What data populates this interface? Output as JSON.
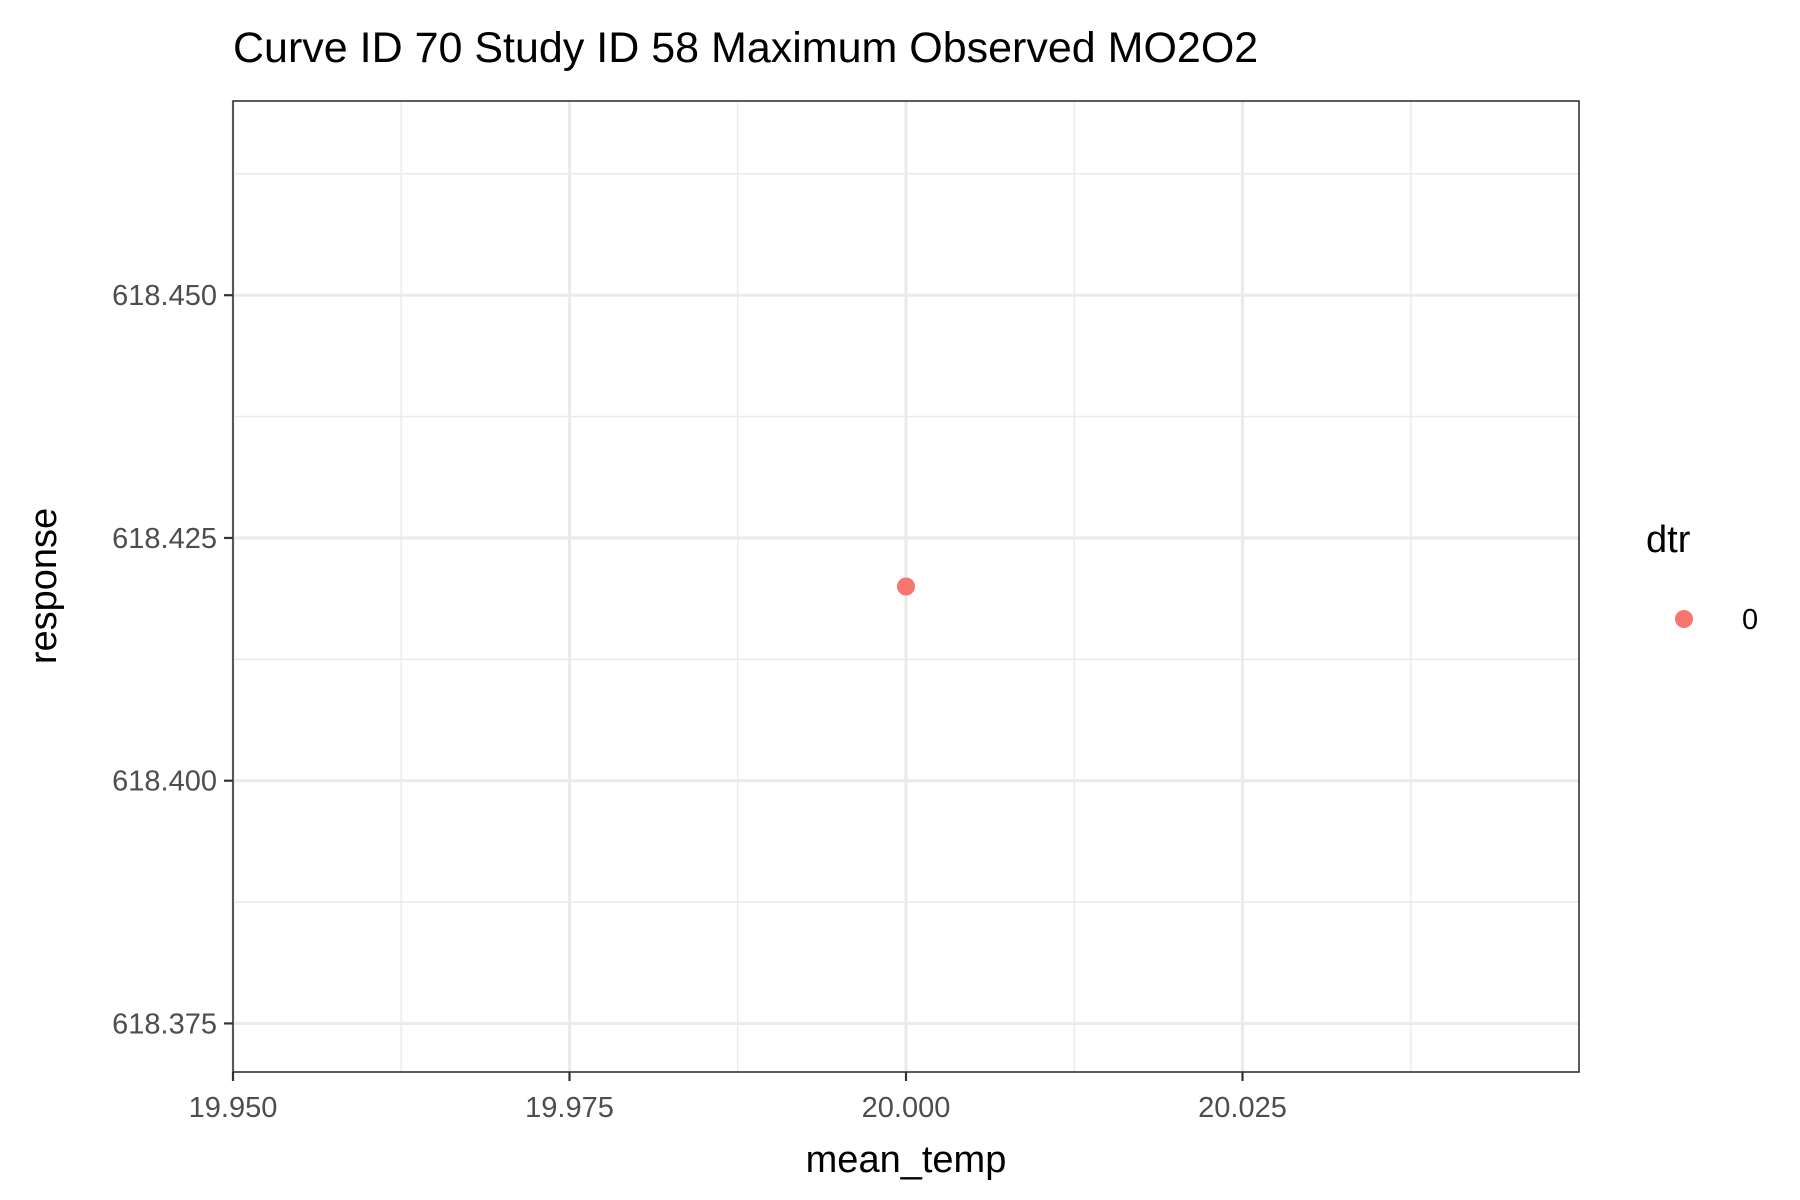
{
  "chart_data": {
    "type": "scatter",
    "title": "Curve ID 70 Study ID 58 Maximum Observed MO2O2",
    "xlabel": "mean_temp",
    "ylabel": "response",
    "xlim": [
      19.95,
      20.05
    ],
    "ylim": [
      618.37,
      618.47
    ],
    "x_ticks": [
      19.95,
      19.975,
      20.0,
      20.025
    ],
    "x_tick_labels": [
      "19.950",
      "19.975",
      "20.000",
      "20.025"
    ],
    "x_minor_ticks": [
      19.9625,
      19.9875,
      20.0125,
      20.0375
    ],
    "y_ticks": [
      618.375,
      618.4,
      618.425,
      618.45
    ],
    "y_tick_labels": [
      "618.375",
      "618.400",
      "618.425",
      "618.450"
    ],
    "y_minor_ticks": [
      618.3875,
      618.4125,
      618.4375,
      618.4625
    ],
    "grid": true,
    "legend": {
      "title": "dtr",
      "placement": "right",
      "entries": [
        {
          "label": "0",
          "color": "#F8766D"
        }
      ]
    },
    "series": [
      {
        "name": "0",
        "color": "#F8766D",
        "points": [
          {
            "x": 20.0,
            "y": 618.42
          }
        ]
      }
    ]
  }
}
